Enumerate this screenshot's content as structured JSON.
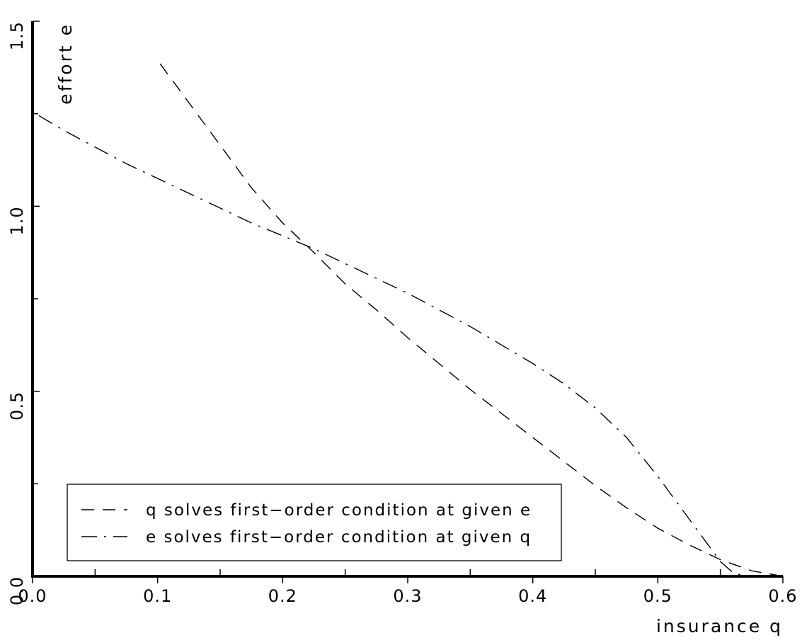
{
  "chart_data": {
    "type": "line",
    "xlabel": "insurance q",
    "ylabel": "effort e",
    "xlim": [
      0.0,
      0.6
    ],
    "ylim": [
      0.0,
      1.5
    ],
    "x_ticks": [
      "0.0",
      "0.1",
      "0.2",
      "0.3",
      "0.4",
      "0.5",
      "0.6"
    ],
    "y_ticks": [
      "0.0",
      "0.5",
      "1.0",
      "1.5"
    ],
    "grid": false,
    "legend_position": "bottom-left",
    "series": [
      {
        "name": "q solves first−order condition at given e",
        "style": "dashed",
        "color": "#000000",
        "points": [
          [
            0.102,
            1.385
          ],
          [
            0.125,
            1.28
          ],
          [
            0.15,
            1.165
          ],
          [
            0.175,
            1.05
          ],
          [
            0.2,
            0.955
          ],
          [
            0.225,
            0.875
          ],
          [
            0.25,
            0.79
          ],
          [
            0.275,
            0.72
          ],
          [
            0.3,
            0.645
          ],
          [
            0.325,
            0.575
          ],
          [
            0.35,
            0.505
          ],
          [
            0.375,
            0.44
          ],
          [
            0.4,
            0.375
          ],
          [
            0.425,
            0.31
          ],
          [
            0.45,
            0.245
          ],
          [
            0.475,
            0.185
          ],
          [
            0.5,
            0.13
          ],
          [
            0.525,
            0.085
          ],
          [
            0.55,
            0.045
          ],
          [
            0.575,
            0.015
          ],
          [
            0.6,
            0.0
          ]
        ]
      },
      {
        "name": "e solves first−order condition at given q",
        "style": "dash-dot",
        "color": "#000000",
        "points": [
          [
            0.005,
            1.245
          ],
          [
            0.025,
            1.205
          ],
          [
            0.05,
            1.16
          ],
          [
            0.075,
            1.115
          ],
          [
            0.1,
            1.075
          ],
          [
            0.125,
            1.035
          ],
          [
            0.15,
            0.995
          ],
          [
            0.175,
            0.955
          ],
          [
            0.2,
            0.92
          ],
          [
            0.225,
            0.885
          ],
          [
            0.25,
            0.845
          ],
          [
            0.275,
            0.805
          ],
          [
            0.3,
            0.765
          ],
          [
            0.325,
            0.72
          ],
          [
            0.35,
            0.675
          ],
          [
            0.375,
            0.625
          ],
          [
            0.4,
            0.575
          ],
          [
            0.425,
            0.52
          ],
          [
            0.45,
            0.455
          ],
          [
            0.475,
            0.375
          ],
          [
            0.5,
            0.27
          ],
          [
            0.525,
            0.155
          ],
          [
            0.55,
            0.04
          ],
          [
            0.56,
            0.01
          ],
          [
            0.57,
            0.0
          ],
          [
            0.6,
            0.0
          ]
        ]
      }
    ]
  }
}
